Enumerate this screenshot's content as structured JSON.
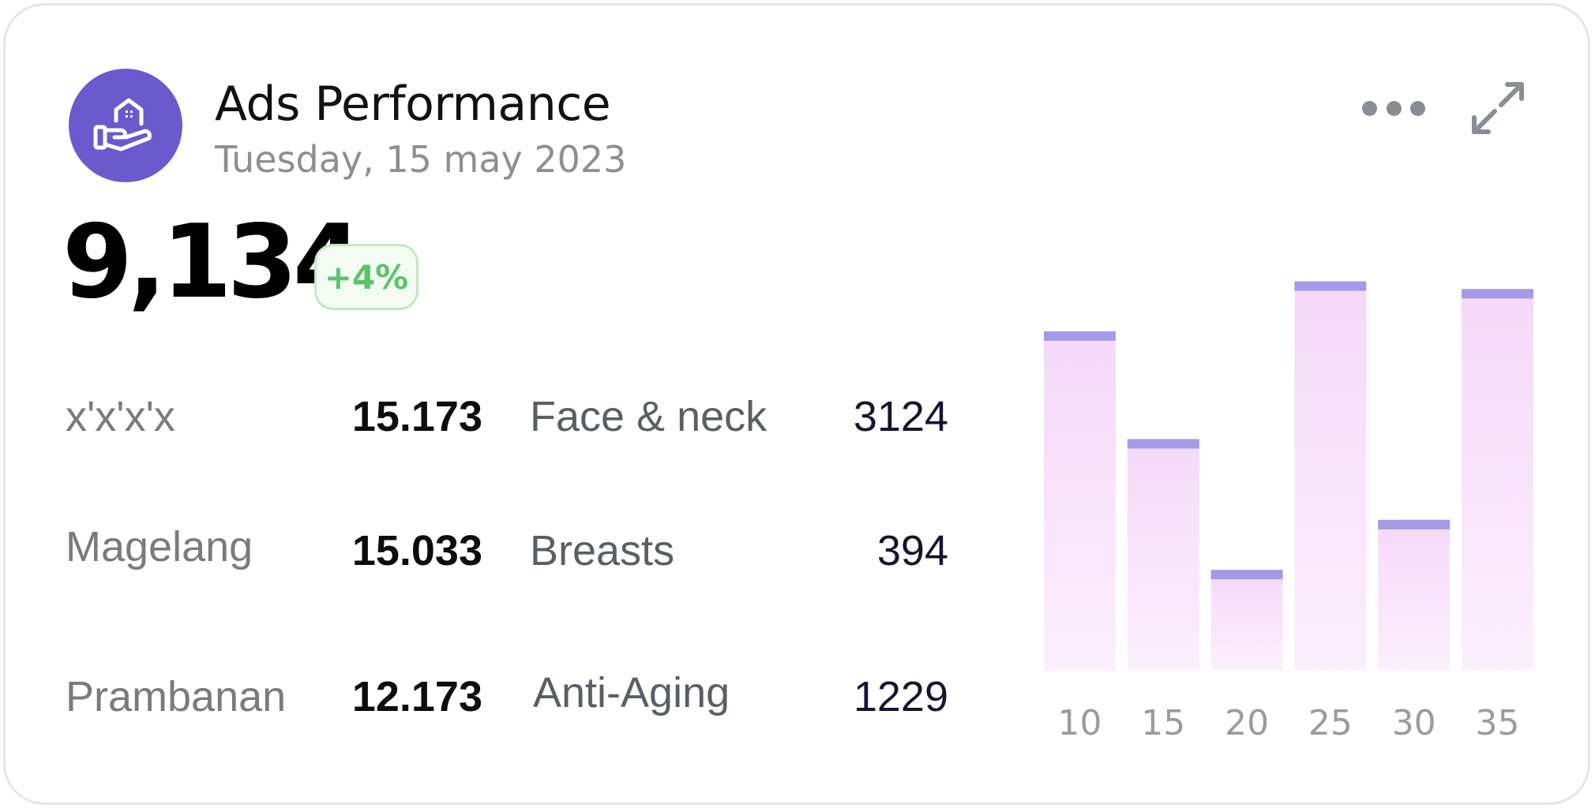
{
  "header": {
    "title": "Ads Performance",
    "subtitle": "Tuesday, 15 may 2023",
    "logo_icon": "house-in-hand-icon",
    "accent_color": "#6a5acd"
  },
  "summary": {
    "total": "9,134",
    "change": "+4%",
    "change_color": "#5bc46a"
  },
  "locations": [
    {
      "label": "x'x'x'x",
      "value": "15.173"
    },
    {
      "label": "Magelang",
      "value": "15.033"
    },
    {
      "label": "Prambanan",
      "value": "12.173"
    }
  ],
  "categories": [
    {
      "label": "Face & neck",
      "value": "3124"
    },
    {
      "label": "Breasts",
      "value": "394"
    },
    {
      "label": "Anti-Aging",
      "value": "1229"
    }
  ],
  "chart_data": {
    "type": "bar",
    "categories": [
      "10",
      "15",
      "20",
      "25",
      "30",
      "35"
    ],
    "values": [
      88,
      60,
      26,
      101,
      39,
      99
    ],
    "ylim": [
      0,
      105
    ],
    "bar_color": "#f5d9f9",
    "cap_color": "#a59ae8",
    "grid": false
  }
}
